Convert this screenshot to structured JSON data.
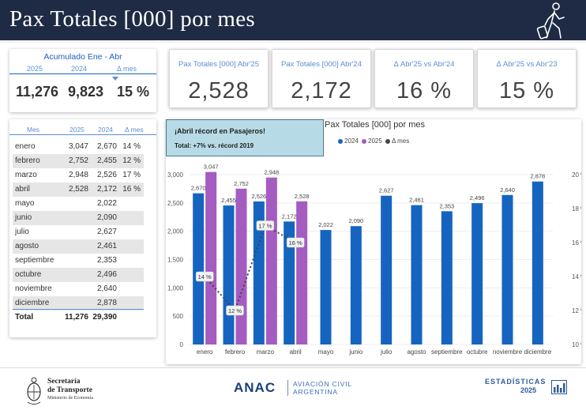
{
  "header": {
    "title": "Pax Totales [000] por mes",
    "icon": "traveler-with-suitcase-icon"
  },
  "accumulated": {
    "title": "Acumulado Ene - Abr",
    "col_2025": "2025",
    "col_2024": "2024",
    "col_delta": "Δ mes",
    "val_2025": "11,276",
    "val_2024": "9,823",
    "val_delta": "15 %"
  },
  "kpis": [
    {
      "label": "Pax Totales [000] Abr'25",
      "value": "2,528"
    },
    {
      "label": "Pax Totales [000] Abr'24",
      "value": "2,172"
    },
    {
      "label": "Δ Abr'25 vs Abr'24",
      "value": "16 %"
    },
    {
      "label": "Δ Abr'25 vs Abr'23",
      "value": "15 %"
    }
  ],
  "monthly_table": {
    "headers": {
      "month": "Mes",
      "y2025": "2025",
      "y2024": "2024",
      "delta": "Δ mes"
    },
    "rows": [
      {
        "month": "enero",
        "y2025": "3,047",
        "y2024": "2,670",
        "delta": "14 %"
      },
      {
        "month": "febrero",
        "y2025": "2,752",
        "y2024": "2,455",
        "delta": "12 %"
      },
      {
        "month": "marzo",
        "y2025": "2,948",
        "y2024": "2,526",
        "delta": "17 %"
      },
      {
        "month": "abril",
        "y2025": "2,528",
        "y2024": "2,172",
        "delta": "16 %"
      },
      {
        "month": "mayo",
        "y2025": "",
        "y2024": "2,022",
        "delta": ""
      },
      {
        "month": "junio",
        "y2025": "",
        "y2024": "2,090",
        "delta": ""
      },
      {
        "month": "julio",
        "y2025": "",
        "y2024": "2,627",
        "delta": ""
      },
      {
        "month": "agosto",
        "y2025": "",
        "y2024": "2,461",
        "delta": ""
      },
      {
        "month": "septiembre",
        "y2025": "",
        "y2024": "2,353",
        "delta": ""
      },
      {
        "month": "octubre",
        "y2025": "",
        "y2024": "2,496",
        "delta": ""
      },
      {
        "month": "noviembre",
        "y2025": "",
        "y2024": "2,640",
        "delta": ""
      },
      {
        "month": "diciembre",
        "y2025": "",
        "y2024": "2,878",
        "delta": ""
      }
    ],
    "total": {
      "label": "Total",
      "y2025": "11,276",
      "y2024": "29,390"
    }
  },
  "callout": {
    "line1": "¡Abril récord en Pasajeros!",
    "line2": "Total: +7% vs. récord 2019"
  },
  "chart_data": {
    "type": "bar",
    "title": "Pax Totales [000] por mes",
    "categories": [
      "enero",
      "febrero",
      "marzo",
      "abril",
      "mayo",
      "junio",
      "julio",
      "agosto",
      "septiembre",
      "octubre",
      "noviembre",
      "diciembre"
    ],
    "series": [
      {
        "name": "2024",
        "type": "bar",
        "color": "#1565c0",
        "values": [
          2670,
          2455,
          2526,
          2172,
          2022,
          2090,
          2627,
          2461,
          2353,
          2496,
          2640,
          2878
        ]
      },
      {
        "name": "2025",
        "type": "bar",
        "color": "#a45cc0",
        "values": [
          3047,
          2752,
          2948,
          2528,
          null,
          null,
          null,
          null,
          null,
          null,
          null,
          null
        ]
      },
      {
        "name": "Δ mes",
        "type": "line",
        "axis": "right",
        "color": "#444444",
        "values": [
          14,
          12,
          17,
          16,
          null,
          null,
          null,
          null,
          null,
          null,
          null,
          null
        ]
      }
    ],
    "y_ticks": [
      "0",
      "500",
      "1,000",
      "1,500",
      "2,000",
      "2,500",
      "3,000"
    ],
    "y_range": [
      0,
      3000
    ],
    "y2_ticks": [
      "10 %",
      "12 %",
      "14 %",
      "16 %",
      "18 %",
      "20 %"
    ],
    "y2_range": [
      10,
      20
    ],
    "legend_position": "top"
  },
  "footer": {
    "sec_line1": "Secretaría",
    "sec_line2": "de Transporte",
    "sec_line3": "Ministerio de Economía",
    "anac": "ANAC",
    "anac_sub1": "AVIACIÓN CIVIL",
    "anac_sub2": "ARGENTINA",
    "est_line1": "ESTADÍSTICAS",
    "est_line2": "2025"
  }
}
